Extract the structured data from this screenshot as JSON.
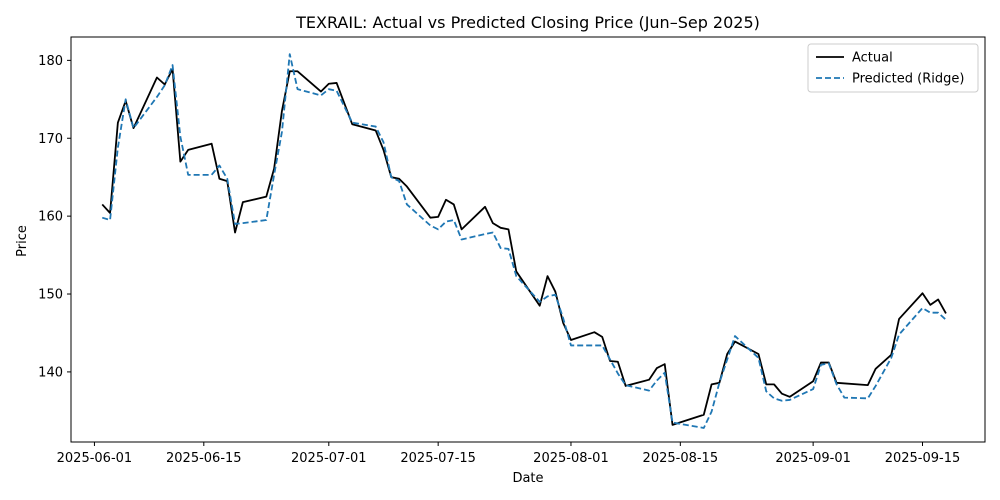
{
  "chart_data": {
    "type": "line",
    "title": "TEXRAIL: Actual vs Predicted Closing Price (Jun–Sep 2025)",
    "xlabel": "Date",
    "ylabel": "Price",
    "x_axis_type": "date",
    "xlim": [
      "2025-05-29",
      "2025-09-23"
    ],
    "ylim": [
      131.0,
      183.0
    ],
    "x_ticks": [
      "2025-06-01",
      "2025-06-15",
      "2025-07-01",
      "2025-07-15",
      "2025-08-01",
      "2025-08-15",
      "2025-09-01",
      "2025-09-15"
    ],
    "y_ticks": [
      140,
      150,
      160,
      170,
      180
    ],
    "grid": false,
    "legend": "top-right",
    "series": [
      {
        "name": "Actual",
        "color": "#000000",
        "style": "solid",
        "points": [
          [
            "2025-06-02",
            161.5
          ],
          [
            "2025-06-03",
            160.4
          ],
          [
            "2025-06-04",
            172.0
          ],
          [
            "2025-06-05",
            174.8
          ],
          [
            "2025-06-06",
            171.3
          ],
          [
            "2025-06-09",
            177.8
          ],
          [
            "2025-06-10",
            176.9
          ],
          [
            "2025-06-11",
            178.9
          ],
          [
            "2025-06-12",
            167.0
          ],
          [
            "2025-06-13",
            168.5
          ],
          [
            "2025-06-16",
            169.3
          ],
          [
            "2025-06-17",
            164.8
          ],
          [
            "2025-06-18",
            164.5
          ],
          [
            "2025-06-19",
            157.9
          ],
          [
            "2025-06-20",
            161.8
          ],
          [
            "2025-06-23",
            162.5
          ],
          [
            "2025-06-24",
            166.1
          ],
          [
            "2025-06-25",
            173.5
          ],
          [
            "2025-06-26",
            178.6
          ],
          [
            "2025-06-27",
            178.6
          ],
          [
            "2025-06-30",
            176.0
          ],
          [
            "2025-07-01",
            177.0
          ],
          [
            "2025-07-02",
            177.1
          ],
          [
            "2025-07-04",
            171.8
          ],
          [
            "2025-07-07",
            171.0
          ],
          [
            "2025-07-08",
            168.5
          ],
          [
            "2025-07-09",
            165.0
          ],
          [
            "2025-07-10",
            164.8
          ],
          [
            "2025-07-11",
            163.8
          ],
          [
            "2025-07-14",
            159.8
          ],
          [
            "2025-07-15",
            159.9
          ],
          [
            "2025-07-16",
            162.1
          ],
          [
            "2025-07-17",
            161.5
          ],
          [
            "2025-07-18",
            158.3
          ],
          [
            "2025-07-21",
            161.2
          ],
          [
            "2025-07-22",
            159.1
          ],
          [
            "2025-07-23",
            158.5
          ],
          [
            "2025-07-24",
            158.3
          ],
          [
            "2025-07-25",
            152.9
          ],
          [
            "2025-07-28",
            148.5
          ],
          [
            "2025-07-29",
            152.3
          ],
          [
            "2025-07-30",
            150.3
          ],
          [
            "2025-07-31",
            146.3
          ],
          [
            "2025-08-01",
            144.1
          ],
          [
            "2025-08-04",
            145.1
          ],
          [
            "2025-08-05",
            144.5
          ],
          [
            "2025-08-06",
            141.4
          ],
          [
            "2025-08-07",
            141.3
          ],
          [
            "2025-08-08",
            138.2
          ],
          [
            "2025-08-11",
            139.0
          ],
          [
            "2025-08-12",
            140.5
          ],
          [
            "2025-08-13",
            141.0
          ],
          [
            "2025-08-14",
            133.2
          ],
          [
            "2025-08-18",
            134.5
          ],
          [
            "2025-08-19",
            138.4
          ],
          [
            "2025-08-20",
            138.6
          ],
          [
            "2025-08-21",
            142.3
          ],
          [
            "2025-08-22",
            143.9
          ],
          [
            "2025-08-25",
            142.3
          ],
          [
            "2025-08-26",
            138.4
          ],
          [
            "2025-08-27",
            138.4
          ],
          [
            "2025-08-28",
            137.2
          ],
          [
            "2025-08-29",
            136.8
          ],
          [
            "2025-09-01",
            138.8
          ],
          [
            "2025-09-02",
            141.2
          ],
          [
            "2025-09-03",
            141.2
          ],
          [
            "2025-09-04",
            138.6
          ],
          [
            "2025-09-08",
            138.3
          ],
          [
            "2025-09-09",
            140.4
          ],
          [
            "2025-09-11",
            142.2
          ],
          [
            "2025-09-12",
            146.8
          ],
          [
            "2025-09-15",
            150.1
          ],
          [
            "2025-09-16",
            148.6
          ],
          [
            "2025-09-17",
            149.3
          ],
          [
            "2025-09-18",
            147.5
          ]
        ]
      },
      {
        "name": "Predicted (Ridge)",
        "color": "#1f77b4",
        "style": "dashed",
        "points": [
          [
            "2025-06-02",
            159.8
          ],
          [
            "2025-06-03",
            159.5
          ],
          [
            "2025-06-04",
            168.8
          ],
          [
            "2025-06-05",
            175.0
          ],
          [
            "2025-06-06",
            171.3
          ],
          [
            "2025-06-09",
            175.3
          ],
          [
            "2025-06-10",
            176.8
          ],
          [
            "2025-06-11",
            179.4
          ],
          [
            "2025-06-12",
            170.2
          ],
          [
            "2025-06-13",
            165.3
          ],
          [
            "2025-06-16",
            165.3
          ],
          [
            "2025-06-17",
            166.5
          ],
          [
            "2025-06-18",
            164.8
          ],
          [
            "2025-06-19",
            159.0
          ],
          [
            "2025-06-20",
            159.1
          ],
          [
            "2025-06-23",
            159.5
          ],
          [
            "2025-06-24",
            165.3
          ],
          [
            "2025-06-25",
            170.8
          ],
          [
            "2025-06-26",
            180.8
          ],
          [
            "2025-06-27",
            176.3
          ],
          [
            "2025-06-30",
            175.5
          ],
          [
            "2025-07-01",
            176.3
          ],
          [
            "2025-07-02",
            176.1
          ],
          [
            "2025-07-04",
            172.0
          ],
          [
            "2025-07-07",
            171.5
          ],
          [
            "2025-07-08",
            169.5
          ],
          [
            "2025-07-09",
            165.0
          ],
          [
            "2025-07-10",
            164.5
          ],
          [
            "2025-07-11",
            161.5
          ],
          [
            "2025-07-14",
            158.8
          ],
          [
            "2025-07-15",
            158.3
          ],
          [
            "2025-07-16",
            159.3
          ],
          [
            "2025-07-17",
            159.5
          ],
          [
            "2025-07-18",
            157.0
          ],
          [
            "2025-07-21",
            157.7
          ],
          [
            "2025-07-22",
            157.9
          ],
          [
            "2025-07-23",
            155.9
          ],
          [
            "2025-07-24",
            155.8
          ],
          [
            "2025-07-25",
            152.3
          ],
          [
            "2025-07-28",
            149.0
          ],
          [
            "2025-07-29",
            149.7
          ],
          [
            "2025-07-30",
            149.9
          ],
          [
            "2025-07-31",
            146.9
          ],
          [
            "2025-08-01",
            143.4
          ],
          [
            "2025-08-04",
            143.4
          ],
          [
            "2025-08-05",
            143.4
          ],
          [
            "2025-08-06",
            141.6
          ],
          [
            "2025-08-07",
            139.8
          ],
          [
            "2025-08-08",
            138.3
          ],
          [
            "2025-08-11",
            137.6
          ],
          [
            "2025-08-12",
            138.9
          ],
          [
            "2025-08-13",
            139.9
          ],
          [
            "2025-08-14",
            133.5
          ],
          [
            "2025-08-18",
            132.8
          ],
          [
            "2025-08-19",
            134.9
          ],
          [
            "2025-08-20",
            138.6
          ],
          [
            "2025-08-21",
            141.6
          ],
          [
            "2025-08-22",
            144.6
          ],
          [
            "2025-08-25",
            141.8
          ],
          [
            "2025-08-26",
            137.5
          ],
          [
            "2025-08-27",
            136.6
          ],
          [
            "2025-08-28",
            136.3
          ],
          [
            "2025-08-29",
            136.4
          ],
          [
            "2025-09-01",
            137.8
          ],
          [
            "2025-09-02",
            140.9
          ],
          [
            "2025-09-03",
            141.1
          ],
          [
            "2025-09-04",
            138.4
          ],
          [
            "2025-09-05",
            136.7
          ],
          [
            "2025-09-08",
            136.6
          ],
          [
            "2025-09-09",
            138.2
          ],
          [
            "2025-09-11",
            141.8
          ],
          [
            "2025-09-12",
            144.8
          ],
          [
            "2025-09-15",
            148.2
          ],
          [
            "2025-09-16",
            147.6
          ],
          [
            "2025-09-17",
            147.6
          ],
          [
            "2025-09-18",
            146.7
          ]
        ]
      }
    ]
  }
}
